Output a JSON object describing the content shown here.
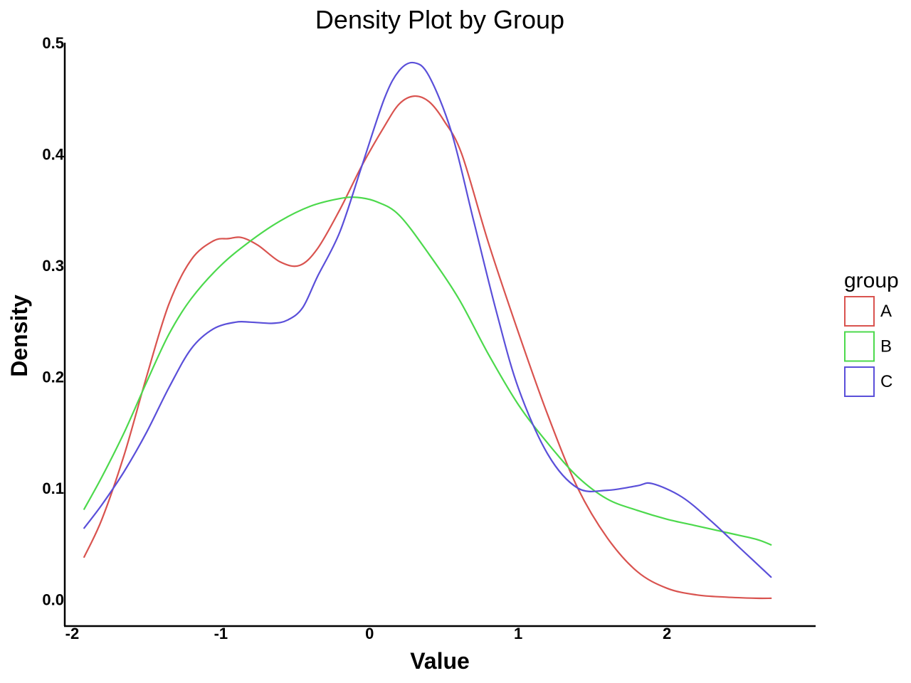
{
  "chart_data": {
    "type": "line",
    "title": "Density Plot by Group",
    "xlabel": "Value",
    "ylabel": "Density",
    "xlim": [
      -2.05,
      3.0
    ],
    "ylim": [
      -0.024,
      0.5
    ],
    "x_ticks": [
      -2,
      -1,
      0,
      1,
      2
    ],
    "x_tick_labels": [
      "-2",
      "-1",
      "0",
      "1",
      "2"
    ],
    "y_ticks": [
      0.0,
      0.1,
      0.2,
      0.3,
      0.4,
      0.5
    ],
    "y_tick_labels": [
      "0.0",
      "0.1",
      "0.2",
      "0.3",
      "0.4",
      "0.5"
    ],
    "grid": false,
    "legend": {
      "title": "group",
      "position": "right"
    },
    "series": [
      {
        "name": "A",
        "color": "#d9534f",
        "x": [
          -1.92,
          -1.8,
          -1.65,
          -1.5,
          -1.35,
          -1.2,
          -1.05,
          -0.95,
          -0.86,
          -0.75,
          -0.6,
          -0.47,
          -0.35,
          -0.2,
          -0.05,
          0.1,
          0.2,
          0.3,
          0.4,
          0.5,
          0.62,
          0.8,
          1.0,
          1.2,
          1.4,
          1.6,
          1.8,
          2.0,
          2.2,
          2.4,
          2.6,
          2.7
        ],
        "y": [
          0.038,
          0.072,
          0.13,
          0.2,
          0.265,
          0.305,
          0.322,
          0.324,
          0.325,
          0.318,
          0.303,
          0.3,
          0.315,
          0.35,
          0.39,
          0.425,
          0.445,
          0.452,
          0.447,
          0.43,
          0.4,
          0.32,
          0.24,
          0.165,
          0.1,
          0.055,
          0.025,
          0.01,
          0.004,
          0.002,
          0.001,
          0.001
        ]
      },
      {
        "name": "B",
        "color": "#4cd94c",
        "x": [
          -1.92,
          -1.8,
          -1.65,
          -1.5,
          -1.35,
          -1.2,
          -1.0,
          -0.8,
          -0.6,
          -0.4,
          -0.2,
          -0.08,
          0.05,
          0.2,
          0.4,
          0.6,
          0.8,
          1.0,
          1.2,
          1.4,
          1.6,
          1.8,
          2.0,
          2.2,
          2.4,
          2.6,
          2.7
        ],
        "y": [
          0.081,
          0.11,
          0.15,
          0.195,
          0.238,
          0.27,
          0.3,
          0.322,
          0.34,
          0.353,
          0.36,
          0.361,
          0.357,
          0.345,
          0.31,
          0.27,
          0.22,
          0.175,
          0.14,
          0.11,
          0.09,
          0.08,
          0.072,
          0.066,
          0.06,
          0.054,
          0.049
        ]
      },
      {
        "name": "C",
        "color": "#5a4fd9",
        "x": [
          -1.92,
          -1.8,
          -1.65,
          -1.5,
          -1.35,
          -1.2,
          -1.05,
          -0.9,
          -0.8,
          -0.65,
          -0.55,
          -0.45,
          -0.35,
          -0.2,
          -0.05,
          0.1,
          0.2,
          0.3,
          0.4,
          0.55,
          0.7,
          0.85,
          1.0,
          1.2,
          1.4,
          1.6,
          1.8,
          1.9,
          2.1,
          2.3,
          2.5,
          2.7
        ],
        "y": [
          0.064,
          0.085,
          0.115,
          0.15,
          0.19,
          0.225,
          0.243,
          0.249,
          0.249,
          0.248,
          0.251,
          0.262,
          0.29,
          0.33,
          0.39,
          0.45,
          0.475,
          0.482,
          0.47,
          0.42,
          0.34,
          0.26,
          0.19,
          0.13,
          0.1,
          0.098,
          0.102,
          0.104,
          0.092,
          0.07,
          0.045,
          0.02
        ]
      }
    ]
  }
}
